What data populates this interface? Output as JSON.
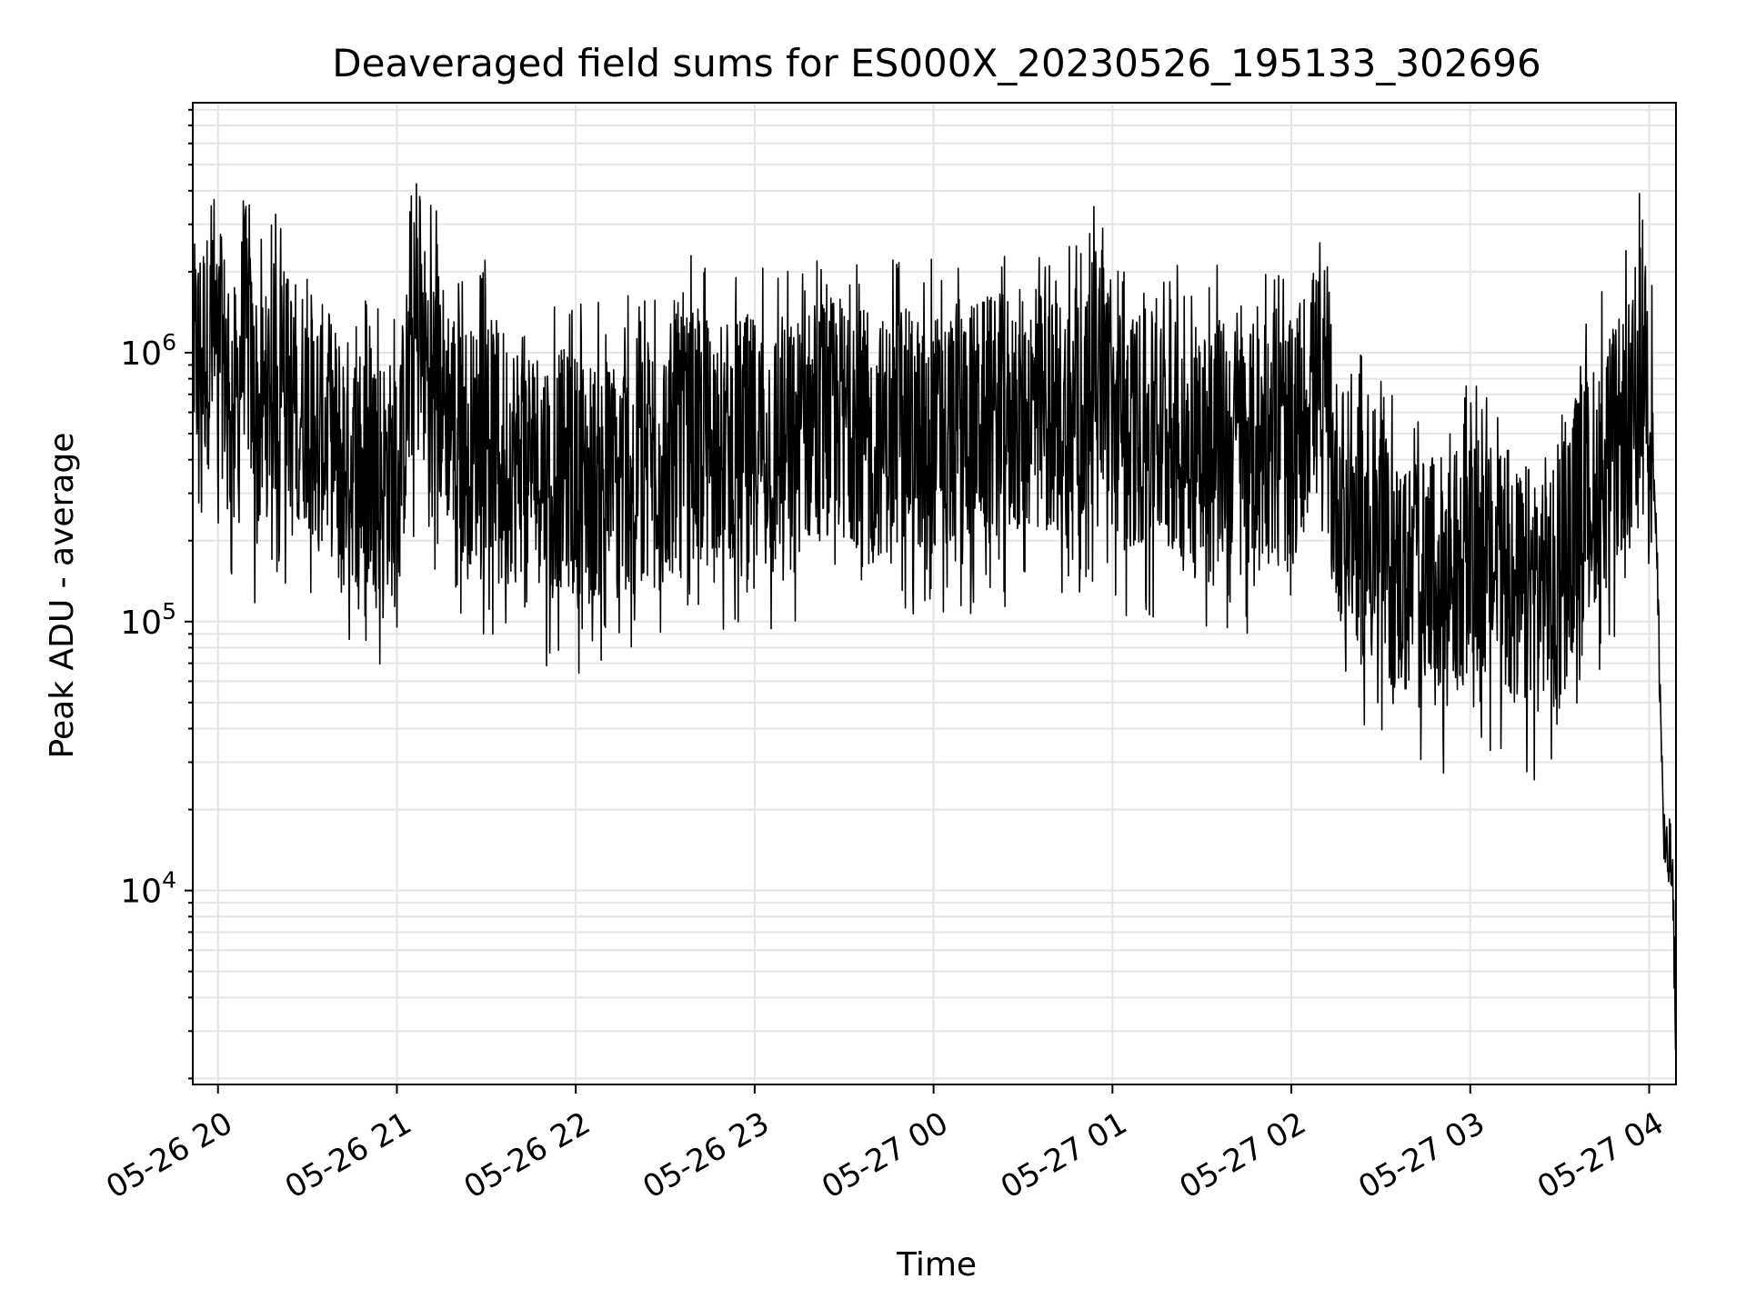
{
  "chart_data": {
    "type": "line",
    "title": "Deaveraged field sums for ES000X_20230526_195133_302696",
    "xlabel": "Time",
    "ylabel": "Peak ADU - average",
    "y_scale": "log",
    "ylim": [
      1900,
      8500000
    ],
    "xlim": [
      "2023-05-26 19:51:33",
      "2023-05-27 04:09:00"
    ],
    "grid": true,
    "line_color": "#000000",
    "grid_color": "#e5e5e5",
    "x_ticks": [
      {
        "t": "2023-05-26 20:00:00",
        "label": "05-26 20"
      },
      {
        "t": "2023-05-26 21:00:00",
        "label": "05-26 21"
      },
      {
        "t": "2023-05-26 22:00:00",
        "label": "05-26 22"
      },
      {
        "t": "2023-05-26 23:00:00",
        "label": "05-26 23"
      },
      {
        "t": "2023-05-27 00:00:00",
        "label": "05-27 00"
      },
      {
        "t": "2023-05-27 01:00:00",
        "label": "05-27 01"
      },
      {
        "t": "2023-05-27 02:00:00",
        "label": "05-27 02"
      },
      {
        "t": "2023-05-27 03:00:00",
        "label": "05-27 03"
      },
      {
        "t": "2023-05-27 04:00:00",
        "label": "05-27 04"
      }
    ],
    "y_ticks": [
      {
        "value": 10000,
        "base": "10",
        "exp": "4"
      },
      {
        "value": 100000,
        "base": "10",
        "exp": "5"
      },
      {
        "value": 1000000,
        "base": "10",
        "exp": "6"
      }
    ],
    "series": [
      {
        "x": [
          "2023-05-26 19:52",
          "2023-05-26 19:55",
          "2023-05-26 20:00",
          "2023-05-26 20:03",
          "2023-05-26 20:06",
          "2023-05-26 20:09",
          "2023-05-26 20:13",
          "2023-05-26 20:18",
          "2023-05-26 20:25",
          "2023-05-26 20:32",
          "2023-05-26 20:40",
          "2023-05-26 20:45",
          "2023-05-26 20:50",
          "2023-05-26 20:55",
          "2023-05-26 21:00",
          "2023-05-26 21:06",
          "2023-05-26 21:10",
          "2023-05-26 21:18",
          "2023-05-26 21:25",
          "2023-05-26 21:30",
          "2023-05-26 21:40",
          "2023-05-26 21:50",
          "2023-05-26 22:00",
          "2023-05-26 22:10",
          "2023-05-26 22:20",
          "2023-05-26 22:30",
          "2023-05-26 22:40",
          "2023-05-26 22:50",
          "2023-05-26 23:00",
          "2023-05-26 23:10",
          "2023-05-26 23:20",
          "2023-05-26 23:30",
          "2023-05-26 23:40",
          "2023-05-26 23:50",
          "2023-05-27 00:00",
          "2023-05-27 00:10",
          "2023-05-27 00:20",
          "2023-05-27 00:30",
          "2023-05-27 00:40",
          "2023-05-27 00:50",
          "2023-05-27 00:56",
          "2023-05-27 01:00",
          "2023-05-27 01:10",
          "2023-05-27 01:20",
          "2023-05-27 01:30",
          "2023-05-27 01:40",
          "2023-05-27 01:50",
          "2023-05-27 02:00",
          "2023-05-27 02:08",
          "2023-05-27 02:15",
          "2023-05-27 02:25",
          "2023-05-27 02:35",
          "2023-05-27 02:45",
          "2023-05-27 02:55",
          "2023-05-27 03:05",
          "2023-05-27 03:15",
          "2023-05-27 03:25",
          "2023-05-27 03:30",
          "2023-05-27 03:35",
          "2023-05-27 03:40",
          "2023-05-27 03:45",
          "2023-05-27 03:50",
          "2023-05-27 03:55",
          "2023-05-27 03:58",
          "2023-05-27 04:00",
          "2023-05-27 04:02",
          "2023-05-27 04:04",
          "2023-05-27 04:05",
          "2023-05-27 04:06",
          "2023-05-27 04:07",
          "2023-05-27 04:08",
          "2023-05-27 04:09"
        ],
        "values": [
          900000,
          1050000,
          1000000,
          900000,
          600000,
          1400000,
          500000,
          800000,
          700000,
          600000,
          450000,
          400000,
          350000,
          380000,
          320000,
          1200000,
          900000,
          600000,
          450000,
          500000,
          420000,
          380000,
          360000,
          330000,
          400000,
          450000,
          520000,
          480000,
          500000,
          450000,
          550000,
          600000,
          480000,
          520000,
          500000,
          560000,
          580000,
          620000,
          600000,
          580000,
          1000000,
          550000,
          520000,
          480000,
          500000,
          470000,
          460000,
          450000,
          800000,
          300000,
          200000,
          150000,
          140000,
          160000,
          170000,
          130000,
          150000,
          120000,
          250000,
          300000,
          400000,
          480000,
          600000,
          1200000,
          800000,
          300000,
          40000,
          15000,
          12000,
          14000,
          9000,
          3000
        ],
        "spike_min": 42000,
        "spike_max": 6000000
      }
    ]
  }
}
